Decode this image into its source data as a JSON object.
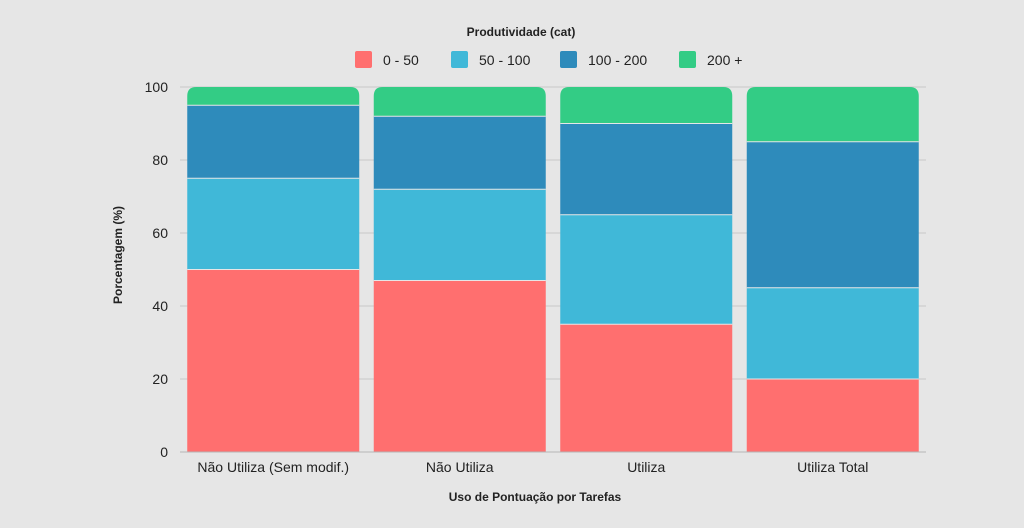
{
  "chart_data": {
    "type": "bar",
    "stacked": true,
    "legend_title": "Produtividade (cat)",
    "legend_position": "top",
    "xlabel": "Uso de Pontuação por Tarefas",
    "ylabel": "Porcentagem (%)",
    "ylim": [
      0,
      100
    ],
    "yticks": [
      "0",
      "20",
      "40",
      "60",
      "80",
      "100"
    ],
    "grid": true,
    "categories": [
      "Não Utiliza (Sem modif.)",
      "Não Utiliza",
      "Utiliza",
      "Utiliza Total"
    ],
    "series": [
      {
        "name": "0 - 50",
        "color": "#ff6f6f",
        "values": [
          50,
          47,
          35,
          20
        ]
      },
      {
        "name": "50 - 100",
        "color": "#40b8d8",
        "values": [
          25,
          25,
          30,
          25
        ]
      },
      {
        "name": "100 - 200",
        "color": "#2e8bbb",
        "values": [
          20,
          20,
          25,
          40
        ]
      },
      {
        "name": "200 +",
        "color": "#33cc85",
        "values": [
          5,
          8,
          10,
          15
        ]
      }
    ]
  }
}
